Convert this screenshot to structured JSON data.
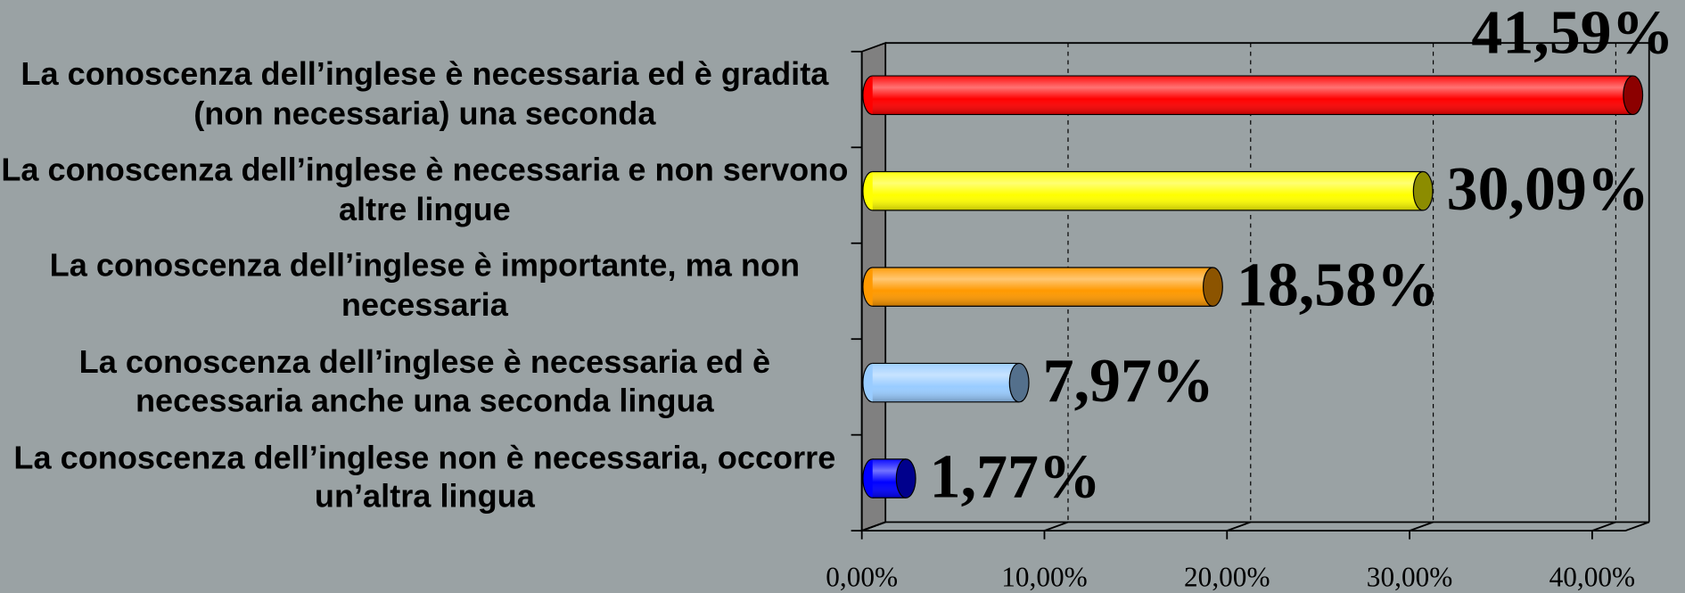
{
  "chart_data": {
    "type": "bar",
    "categories": [
      "La conoscenza dell’inglese è necessaria ed è gradita (non necessaria) una seconda",
      "La conoscenza dell’inglese è necessaria e non servono altre lingue",
      "La conoscenza dell’inglese è importante, ma non necessaria",
      "La conoscenza dell’inglese è necessaria ed è necessaria anche una seconda lingua",
      "La conoscenza dell’inglese non è necessaria, occorre un’altra lingua"
    ],
    "values": [
      41.59,
      30.09,
      18.58,
      7.97,
      1.77
    ],
    "value_labels": [
      "41,59%",
      "30,09%",
      "18,58%",
      "7,97%",
      "1,77%"
    ],
    "colors": [
      "#ff0000",
      "#ffff00",
      "#ff9900",
      "#99ccff",
      "#0000ff"
    ],
    "xlim": [
      0,
      42
    ],
    "xticks": [
      {
        "value": 0,
        "label": "0,00%"
      },
      {
        "value": 10,
        "label": "10,00%"
      },
      {
        "value": 20,
        "label": "20,00%"
      },
      {
        "value": 30,
        "label": "30,00%"
      },
      {
        "value": 40,
        "label": "40,00%"
      }
    ],
    "grid": true
  }
}
